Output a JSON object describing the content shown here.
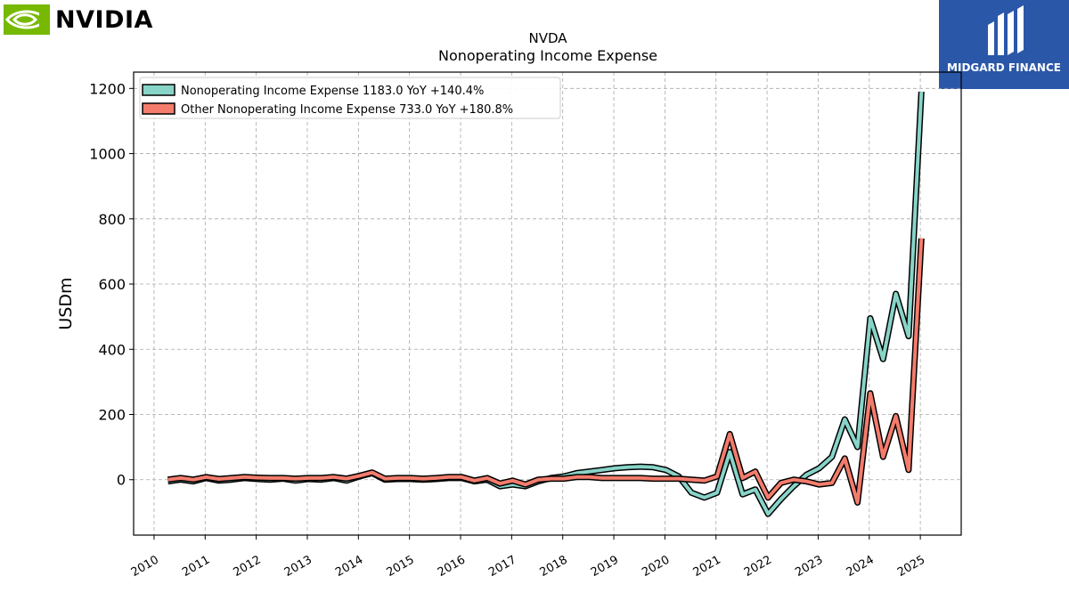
{
  "brand": {
    "logo_text": "NVIDIA",
    "logo_color": "#76b900"
  },
  "watermark": {
    "text": "MIDGARD FINANCE",
    "color": "#2b57a8"
  },
  "chart_data": {
    "type": "line",
    "title": "NVDA",
    "subtitle": "Nonoperating Income Expense",
    "xlabel": "",
    "ylabel": "USDm",
    "ylim": [
      -170,
      1250
    ],
    "xlim": [
      2009.6,
      2025.8
    ],
    "yticks": [
      0,
      200,
      400,
      600,
      800,
      1000,
      1200
    ],
    "xticks": [
      2010,
      2011,
      2012,
      2013,
      2014,
      2015,
      2016,
      2017,
      2018,
      2019,
      2020,
      2021,
      2022,
      2023,
      2024,
      2025
    ],
    "grid": true,
    "legend_position": "top-left",
    "series": [
      {
        "name": "Nonoperating Income Expense  1183.0 YoY +140.4%",
        "color": "#88d4c8",
        "x": [
          2010.27,
          2010.52,
          2010.77,
          2011.02,
          2011.27,
          2011.52,
          2011.77,
          2012.02,
          2012.27,
          2012.52,
          2012.77,
          2013.02,
          2013.27,
          2013.52,
          2013.77,
          2014.02,
          2014.27,
          2014.52,
          2014.77,
          2015.02,
          2015.27,
          2015.52,
          2015.77,
          2016.02,
          2016.27,
          2016.52,
          2016.77,
          2017.02,
          2017.27,
          2017.52,
          2017.77,
          2018.02,
          2018.27,
          2018.52,
          2018.77,
          2019.02,
          2019.27,
          2019.52,
          2019.77,
          2020.02,
          2020.27,
          2020.52,
          2020.77,
          2021.02,
          2021.27,
          2021.52,
          2021.77,
          2022.02,
          2022.27,
          2022.52,
          2022.77,
          2023.02,
          2023.27,
          2023.52,
          2023.77,
          2024.02,
          2024.27,
          2024.52,
          2024.77,
          2025.02
        ],
        "values": [
          -5,
          0,
          -5,
          5,
          -3,
          0,
          5,
          2,
          0,
          3,
          -3,
          2,
          0,
          5,
          -3,
          10,
          20,
          0,
          2,
          2,
          0,
          2,
          5,
          5,
          -5,
          0,
          -20,
          -15,
          -20,
          -5,
          5,
          10,
          20,
          25,
          30,
          35,
          38,
          40,
          38,
          30,
          10,
          -40,
          -55,
          -40,
          85,
          -45,
          -30,
          -105,
          -60,
          -20,
          15,
          35,
          70,
          185,
          100,
          495,
          370,
          570,
          440,
          1190
        ]
      },
      {
        "name": "Other Nonoperating Income Expense  733.0 YoY +180.8%",
        "color": "#f47c6c",
        "x": [
          2010.27,
          2010.52,
          2010.77,
          2011.02,
          2011.27,
          2011.52,
          2011.77,
          2012.02,
          2012.27,
          2012.52,
          2012.77,
          2013.02,
          2013.27,
          2013.52,
          2013.77,
          2014.02,
          2014.27,
          2014.52,
          2014.77,
          2015.02,
          2015.27,
          2015.52,
          2015.77,
          2016.02,
          2016.27,
          2016.52,
          2016.77,
          2017.02,
          2017.27,
          2017.52,
          2017.77,
          2018.02,
          2018.27,
          2018.52,
          2018.77,
          2019.02,
          2019.27,
          2019.52,
          2019.77,
          2020.02,
          2020.27,
          2020.52,
          2020.77,
          2021.02,
          2021.27,
          2021.52,
          2021.77,
          2022.02,
          2022.27,
          2022.52,
          2022.77,
          2023.02,
          2023.27,
          2023.52,
          2023.77,
          2024.02,
          2024.27,
          2024.52,
          2024.77,
          2025.02
        ],
        "values": [
          0,
          5,
          0,
          8,
          2,
          5,
          8,
          6,
          5,
          5,
          3,
          5,
          5,
          8,
          3,
          12,
          22,
          3,
          5,
          5,
          3,
          5,
          8,
          8,
          -3,
          5,
          -12,
          -3,
          -15,
          0,
          3,
          3,
          8,
          8,
          5,
          5,
          5,
          5,
          3,
          3,
          3,
          0,
          -3,
          10,
          140,
          5,
          25,
          -55,
          -10,
          0,
          -5,
          -15,
          -10,
          65,
          -70,
          265,
          70,
          195,
          30,
          740
        ]
      }
    ]
  }
}
